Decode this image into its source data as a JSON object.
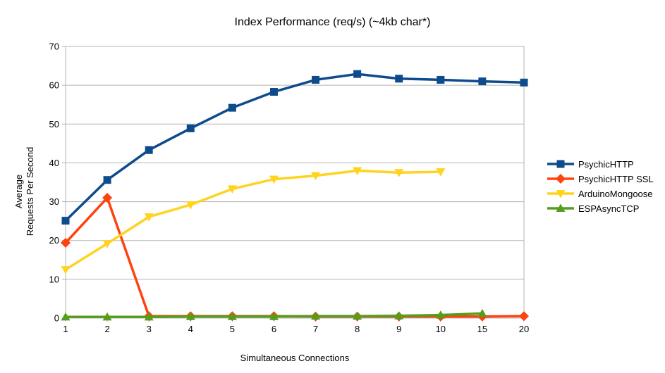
{
  "title": "Index Performance (req/s) (~4kb char*)",
  "axes": {
    "y_label_line1": "Average",
    "y_label_line2": "Requests Per Second",
    "x_label": "Simultaneous Connections"
  },
  "colors": {
    "grid": "#b3b3b3",
    "text": "#000000"
  },
  "chart_data": {
    "type": "line",
    "title": "Index Performance (req/s) (~4kb char*)",
    "xlabel": "Simultaneous Connections",
    "ylabel": "Average Requests Per Second",
    "categories": [
      "1",
      "2",
      "3",
      "4",
      "5",
      "6",
      "7",
      "8",
      "9",
      "10",
      "15",
      "20"
    ],
    "y_ticks": [
      0,
      10,
      20,
      30,
      40,
      50,
      60,
      70
    ],
    "ylim": [
      0,
      70
    ],
    "grid": "horizontal",
    "legend_position": "right",
    "series": [
      {
        "name": "PsychicHTTP",
        "color": "#0E4B8C",
        "marker": "square",
        "values": [
          25.1,
          35.6,
          43.3,
          48.9,
          54.2,
          58.3,
          61.4,
          62.9,
          61.7,
          61.4,
          61.0,
          60.7
        ]
      },
      {
        "name": "PsychicHTTP SSL",
        "color": "#FF420E",
        "marker": "diamond",
        "values": [
          19.4,
          31.0,
          0.5,
          0.5,
          0.5,
          0.5,
          0.4,
          0.4,
          0.4,
          0.4,
          0.4,
          0.5
        ]
      },
      {
        "name": "ArduinoMongoose",
        "color": "#FFD320",
        "marker": "triangle-down",
        "values": [
          12.5,
          19.2,
          26.1,
          29.2,
          33.3,
          35.8,
          36.7,
          38.0,
          37.5,
          37.7,
          null,
          null
        ]
      },
      {
        "name": "ESPAsyncTCP",
        "color": "#579D1C",
        "marker": "triangle-up",
        "values": [
          0.3,
          0.3,
          0.3,
          0.4,
          0.4,
          0.4,
          0.5,
          0.5,
          0.6,
          0.8,
          1.2,
          null
        ]
      }
    ]
  }
}
